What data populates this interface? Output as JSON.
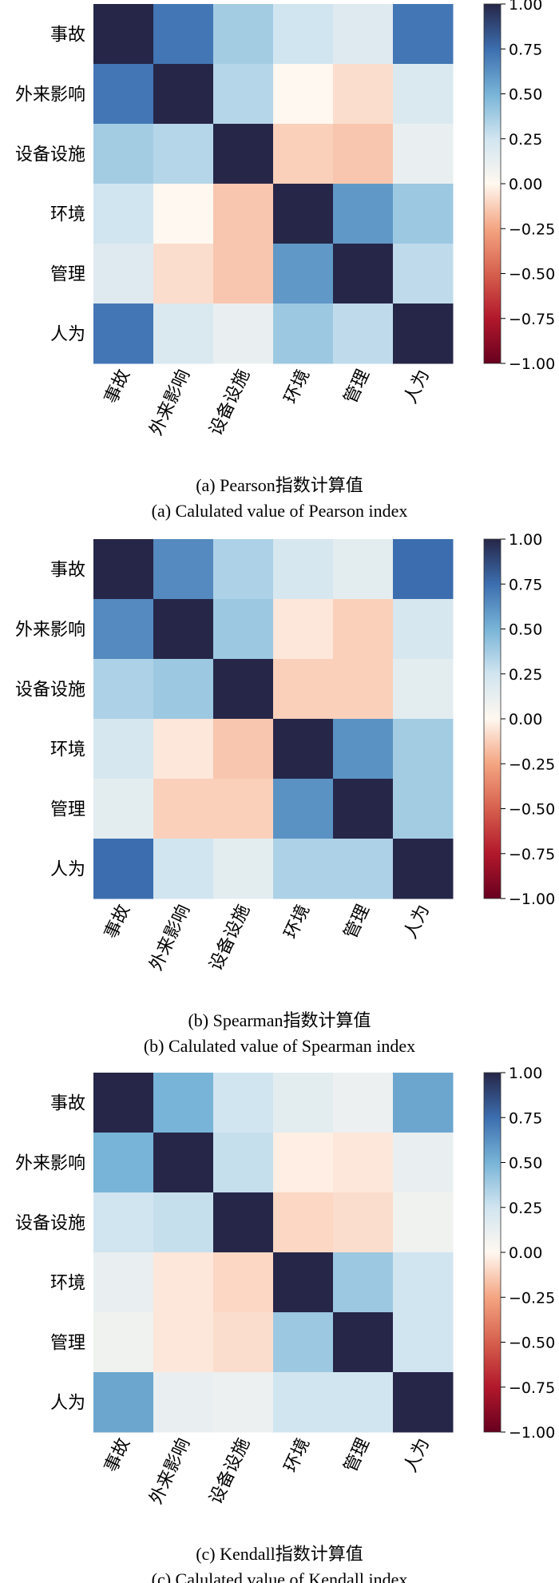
{
  "chart_data": [
    {
      "type": "heatmap",
      "title": "(a) Pearson指数计算值",
      "subtitle": "(a) Calulated value of Pearson index",
      "categories": [
        "事故",
        "外来影响",
        "设备设施",
        "环境",
        "管理",
        "人为"
      ],
      "values": [
        [
          1.0,
          0.72,
          0.38,
          0.25,
          0.18,
          0.72
        ],
        [
          0.72,
          1.0,
          0.33,
          0.0,
          -0.08,
          0.2
        ],
        [
          0.38,
          0.33,
          1.0,
          -0.12,
          -0.15,
          0.12
        ],
        [
          0.25,
          0.0,
          -0.15,
          1.0,
          0.6,
          0.4
        ],
        [
          0.18,
          -0.08,
          -0.15,
          0.6,
          1.0,
          0.3
        ],
        [
          0.72,
          0.2,
          0.12,
          0.4,
          0.3,
          1.0
        ]
      ],
      "colorbar_ticks": [
        "1.00",
        "0.75",
        "0.50",
        "0.25",
        "0.00",
        "−0.25",
        "−0.50",
        "−0.75",
        "−1.00"
      ],
      "vmin": -1,
      "vmax": 1
    },
    {
      "type": "heatmap",
      "title": "(b) Spearman指数计算值",
      "subtitle": "(b) Calulated value of Spearman index",
      "categories": [
        "事故",
        "外来影响",
        "设备设施",
        "环境",
        "管理",
        "人为"
      ],
      "values": [
        [
          1.0,
          0.65,
          0.35,
          0.22,
          0.15,
          0.75
        ],
        [
          0.65,
          1.0,
          0.4,
          -0.05,
          -0.12,
          0.22
        ],
        [
          0.35,
          0.4,
          1.0,
          -0.12,
          -0.12,
          0.15
        ],
        [
          0.22,
          -0.05,
          -0.15,
          1.0,
          0.62,
          0.38
        ],
        [
          0.15,
          -0.12,
          -0.12,
          0.62,
          1.0,
          0.38
        ],
        [
          0.75,
          0.25,
          0.15,
          0.35,
          0.35,
          1.0
        ]
      ],
      "colorbar_ticks": [
        "1.00",
        "0.75",
        "0.50",
        "0.25",
        "0.00",
        "−0.25",
        "−0.50",
        "−0.75",
        "−1.00"
      ],
      "vmin": -1,
      "vmax": 1
    },
    {
      "type": "heatmap",
      "title": "(c) Kendall指数计算值",
      "subtitle": "(c) Calulated value of Kendall index",
      "categories": [
        "事故",
        "外来影响",
        "设备设施",
        "环境",
        "管理",
        "人为"
      ],
      "values": [
        [
          1.0,
          0.5,
          0.25,
          0.15,
          0.1,
          0.55
        ],
        [
          0.5,
          1.0,
          0.28,
          -0.03,
          -0.05,
          0.12
        ],
        [
          0.25,
          0.28,
          1.0,
          -0.1,
          -0.08,
          0.08
        ],
        [
          0.12,
          -0.05,
          -0.1,
          1.0,
          0.4,
          0.25
        ],
        [
          0.08,
          -0.05,
          -0.08,
          0.4,
          1.0,
          0.25
        ],
        [
          0.55,
          0.12,
          0.1,
          0.25,
          0.25,
          1.0
        ]
      ],
      "colorbar_ticks": [
        "1.00",
        "0.75",
        "0.50",
        "0.25",
        "0.00",
        "−0.25",
        "−0.50",
        "−0.75",
        "−1.00"
      ],
      "vmin": -1,
      "vmax": 1
    }
  ]
}
